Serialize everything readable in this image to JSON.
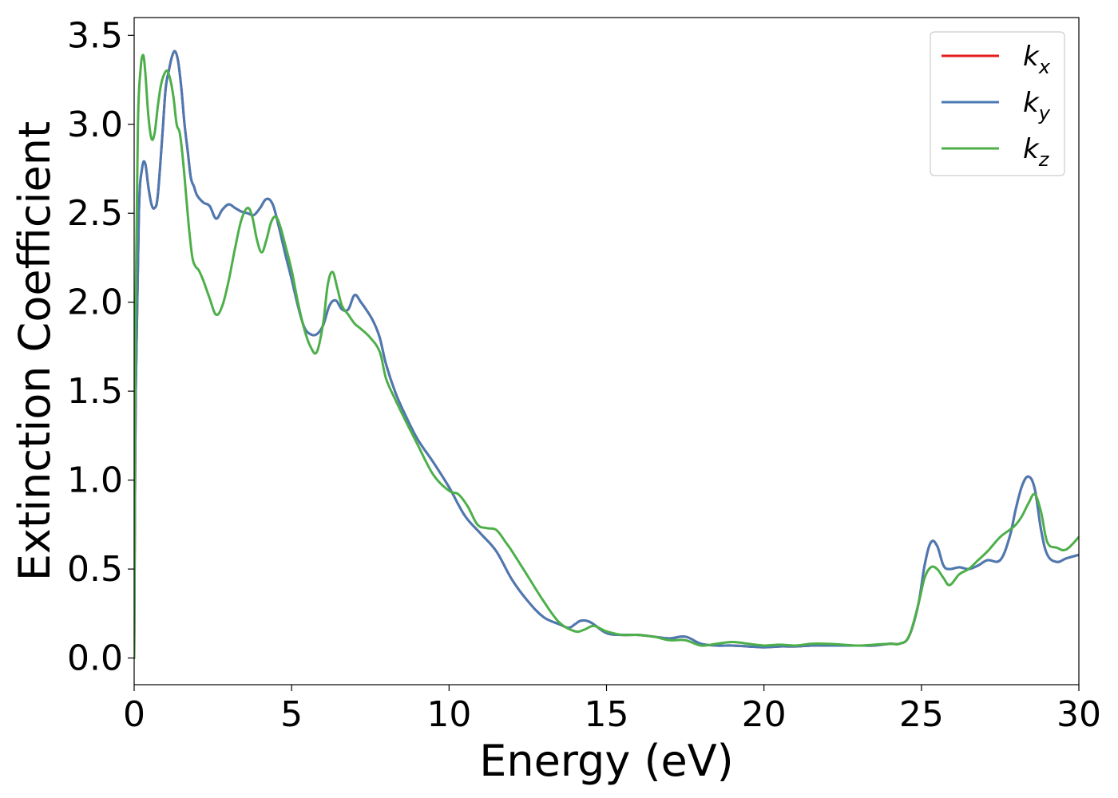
{
  "chart_data": {
    "type": "line",
    "xlabel": "Energy (eV)",
    "ylabel": "Extinction Coefficient",
    "xlim": [
      0,
      30
    ],
    "ylim": [
      -0.15,
      3.6
    ],
    "xticks": [
      0,
      5,
      10,
      15,
      20,
      25,
      30
    ],
    "xtick_labels": [
      "0",
      "5",
      "10",
      "15",
      "20",
      "25",
      "30"
    ],
    "yticks": [
      0.0,
      0.5,
      1.0,
      1.5,
      2.0,
      2.5,
      3.0,
      3.5
    ],
    "ytick_labels": [
      "0.0",
      "0.5",
      "1.0",
      "1.5",
      "2.0",
      "2.5",
      "3.0",
      "3.5"
    ],
    "grid": false,
    "legend_position": "top-right",
    "series": [
      {
        "name": "k_x",
        "label_base": "k",
        "label_sub": "x",
        "color": "#e41a1c",
        "x": [
          0,
          0.05,
          0.15,
          0.25,
          0.35,
          0.45,
          0.55,
          0.65,
          0.75,
          0.9,
          1.0,
          1.1,
          1.2,
          1.3,
          1.4,
          1.5,
          1.6,
          1.7,
          1.8,
          1.9,
          2.0,
          2.2,
          2.4,
          2.6,
          2.8,
          3.0,
          3.2,
          3.4,
          3.6,
          3.8,
          4.0,
          4.2,
          4.4,
          4.6,
          4.8,
          5.0,
          5.2,
          5.4,
          5.6,
          5.8,
          6.0,
          6.2,
          6.4,
          6.6,
          6.8,
          7.0,
          7.2,
          7.4,
          7.6,
          7.8,
          8.0,
          8.3,
          8.6,
          9.0,
          9.5,
          10.0,
          10.5,
          11.0,
          11.5,
          12.0,
          12.5,
          13.0,
          13.5,
          13.8,
          14.0,
          14.2,
          14.5,
          15.0,
          15.5,
          16.0,
          16.5,
          17.0,
          17.5,
          18.0,
          18.5,
          19.0,
          19.5,
          20.0,
          20.5,
          21.0,
          21.5,
          22.0,
          22.5,
          23.0,
          23.5,
          24.0,
          24.3,
          24.6,
          24.9,
          25.1,
          25.3,
          25.5,
          25.7,
          25.9,
          26.2,
          26.5,
          26.8,
          27.1,
          27.5,
          27.8,
          28.0,
          28.2,
          28.4,
          28.6,
          28.8,
          29.0,
          29.3,
          29.6,
          30.0
        ],
        "y": [
          0.0,
          1.5,
          2.5,
          2.75,
          2.78,
          2.65,
          2.55,
          2.53,
          2.6,
          2.95,
          3.2,
          3.3,
          3.38,
          3.41,
          3.35,
          3.2,
          3.0,
          2.85,
          2.7,
          2.65,
          2.6,
          2.56,
          2.54,
          2.47,
          2.52,
          2.55,
          2.53,
          2.51,
          2.5,
          2.49,
          2.53,
          2.58,
          2.55,
          2.42,
          2.27,
          2.13,
          1.98,
          1.86,
          1.82,
          1.82,
          1.87,
          1.98,
          2.01,
          1.96,
          1.96,
          2.04,
          2.0,
          1.95,
          1.89,
          1.8,
          1.65,
          1.49,
          1.37,
          1.23,
          1.1,
          0.96,
          0.8,
          0.7,
          0.6,
          0.44,
          0.32,
          0.23,
          0.19,
          0.17,
          0.19,
          0.21,
          0.2,
          0.14,
          0.13,
          0.13,
          0.12,
          0.11,
          0.12,
          0.08,
          0.07,
          0.07,
          0.065,
          0.06,
          0.065,
          0.065,
          0.07,
          0.07,
          0.07,
          0.07,
          0.07,
          0.08,
          0.08,
          0.12,
          0.3,
          0.52,
          0.65,
          0.63,
          0.52,
          0.5,
          0.51,
          0.5,
          0.52,
          0.55,
          0.55,
          0.68,
          0.84,
          0.97,
          1.02,
          0.95,
          0.72,
          0.58,
          0.54,
          0.56,
          0.58
        ]
      },
      {
        "name": "k_y",
        "label_base": "k",
        "label_sub": "y",
        "color": "#4a7ab3",
        "x": [
          0,
          0.05,
          0.15,
          0.25,
          0.35,
          0.45,
          0.55,
          0.65,
          0.75,
          0.9,
          1.0,
          1.1,
          1.2,
          1.3,
          1.4,
          1.5,
          1.6,
          1.7,
          1.8,
          1.9,
          2.0,
          2.2,
          2.4,
          2.6,
          2.8,
          3.0,
          3.2,
          3.4,
          3.6,
          3.8,
          4.0,
          4.2,
          4.4,
          4.6,
          4.8,
          5.0,
          5.2,
          5.4,
          5.6,
          5.8,
          6.0,
          6.2,
          6.4,
          6.6,
          6.8,
          7.0,
          7.2,
          7.4,
          7.6,
          7.8,
          8.0,
          8.3,
          8.6,
          9.0,
          9.5,
          10.0,
          10.5,
          11.0,
          11.5,
          12.0,
          12.5,
          13.0,
          13.5,
          13.8,
          14.0,
          14.2,
          14.5,
          15.0,
          15.5,
          16.0,
          16.5,
          17.0,
          17.5,
          18.0,
          18.5,
          19.0,
          19.5,
          20.0,
          20.5,
          21.0,
          21.5,
          22.0,
          22.5,
          23.0,
          23.5,
          24.0,
          24.3,
          24.6,
          24.9,
          25.1,
          25.3,
          25.5,
          25.7,
          25.9,
          26.2,
          26.5,
          26.8,
          27.1,
          27.5,
          27.8,
          28.0,
          28.2,
          28.4,
          28.6,
          28.8,
          29.0,
          29.3,
          29.6,
          30.0
        ],
        "y": [
          0.0,
          1.5,
          2.5,
          2.75,
          2.78,
          2.65,
          2.55,
          2.53,
          2.6,
          2.95,
          3.2,
          3.3,
          3.38,
          3.41,
          3.35,
          3.2,
          3.0,
          2.85,
          2.7,
          2.65,
          2.6,
          2.56,
          2.54,
          2.47,
          2.52,
          2.55,
          2.53,
          2.51,
          2.5,
          2.49,
          2.53,
          2.58,
          2.55,
          2.42,
          2.27,
          2.13,
          1.98,
          1.86,
          1.82,
          1.82,
          1.87,
          1.98,
          2.01,
          1.96,
          1.96,
          2.04,
          2.0,
          1.95,
          1.89,
          1.8,
          1.65,
          1.49,
          1.37,
          1.23,
          1.1,
          0.96,
          0.8,
          0.7,
          0.6,
          0.44,
          0.32,
          0.23,
          0.19,
          0.17,
          0.19,
          0.21,
          0.2,
          0.14,
          0.13,
          0.13,
          0.12,
          0.11,
          0.12,
          0.08,
          0.07,
          0.07,
          0.065,
          0.06,
          0.065,
          0.065,
          0.07,
          0.07,
          0.07,
          0.07,
          0.07,
          0.08,
          0.08,
          0.12,
          0.3,
          0.52,
          0.65,
          0.63,
          0.52,
          0.5,
          0.51,
          0.5,
          0.52,
          0.55,
          0.55,
          0.68,
          0.84,
          0.97,
          1.02,
          0.95,
          0.72,
          0.58,
          0.54,
          0.56,
          0.58
        ]
      },
      {
        "name": "k_z",
        "label_base": "k",
        "label_sub": "z",
        "color": "#4daf4a",
        "x": [
          0,
          0.05,
          0.12,
          0.2,
          0.28,
          0.35,
          0.45,
          0.55,
          0.65,
          0.75,
          0.85,
          0.95,
          1.05,
          1.15,
          1.25,
          1.35,
          1.45,
          1.55,
          1.65,
          1.75,
          1.85,
          1.95,
          2.05,
          2.2,
          2.4,
          2.6,
          2.8,
          3.0,
          3.2,
          3.4,
          3.6,
          3.75,
          3.9,
          4.05,
          4.2,
          4.35,
          4.5,
          4.65,
          4.8,
          5.0,
          5.2,
          5.4,
          5.6,
          5.8,
          6.0,
          6.15,
          6.3,
          6.45,
          6.6,
          6.8,
          7.0,
          7.2,
          7.5,
          7.8,
          8.0,
          8.3,
          8.6,
          9.0,
          9.5,
          10.0,
          10.3,
          10.6,
          10.9,
          11.2,
          11.5,
          11.8,
          12.0,
          12.5,
          13.0,
          13.5,
          14.0,
          14.3,
          14.6,
          15.0,
          15.5,
          16.0,
          16.5,
          17.0,
          17.5,
          18.0,
          18.5,
          19.0,
          19.5,
          20.0,
          20.5,
          21.0,
          21.5,
          22.0,
          22.5,
          23.0,
          23.5,
          24.0,
          24.3,
          24.6,
          24.9,
          25.1,
          25.3,
          25.5,
          25.7,
          25.9,
          26.2,
          26.5,
          26.8,
          27.1,
          27.5,
          27.8,
          28.0,
          28.2,
          28.4,
          28.6,
          28.8,
          29.0,
          29.3,
          29.6,
          30.0
        ],
        "y": [
          0.0,
          2.0,
          3.0,
          3.3,
          3.39,
          3.3,
          3.05,
          2.92,
          2.95,
          3.1,
          3.22,
          3.28,
          3.3,
          3.25,
          3.15,
          3.0,
          2.95,
          2.8,
          2.6,
          2.4,
          2.25,
          2.2,
          2.18,
          2.12,
          2.02,
          1.93,
          1.98,
          2.12,
          2.3,
          2.46,
          2.53,
          2.48,
          2.35,
          2.28,
          2.35,
          2.45,
          2.48,
          2.42,
          2.32,
          2.18,
          2.0,
          1.85,
          1.75,
          1.72,
          1.88,
          2.1,
          2.17,
          2.08,
          1.98,
          1.93,
          1.88,
          1.85,
          1.8,
          1.72,
          1.57,
          1.45,
          1.34,
          1.2,
          1.03,
          0.94,
          0.92,
          0.85,
          0.75,
          0.73,
          0.72,
          0.65,
          0.6,
          0.46,
          0.32,
          0.2,
          0.15,
          0.16,
          0.18,
          0.15,
          0.13,
          0.13,
          0.12,
          0.1,
          0.1,
          0.07,
          0.08,
          0.09,
          0.08,
          0.07,
          0.075,
          0.07,
          0.08,
          0.08,
          0.075,
          0.07,
          0.075,
          0.08,
          0.08,
          0.12,
          0.3,
          0.45,
          0.51,
          0.5,
          0.45,
          0.41,
          0.47,
          0.5,
          0.55,
          0.6,
          0.68,
          0.72,
          0.75,
          0.8,
          0.87,
          0.92,
          0.82,
          0.65,
          0.62,
          0.61,
          0.68
        ]
      }
    ]
  }
}
